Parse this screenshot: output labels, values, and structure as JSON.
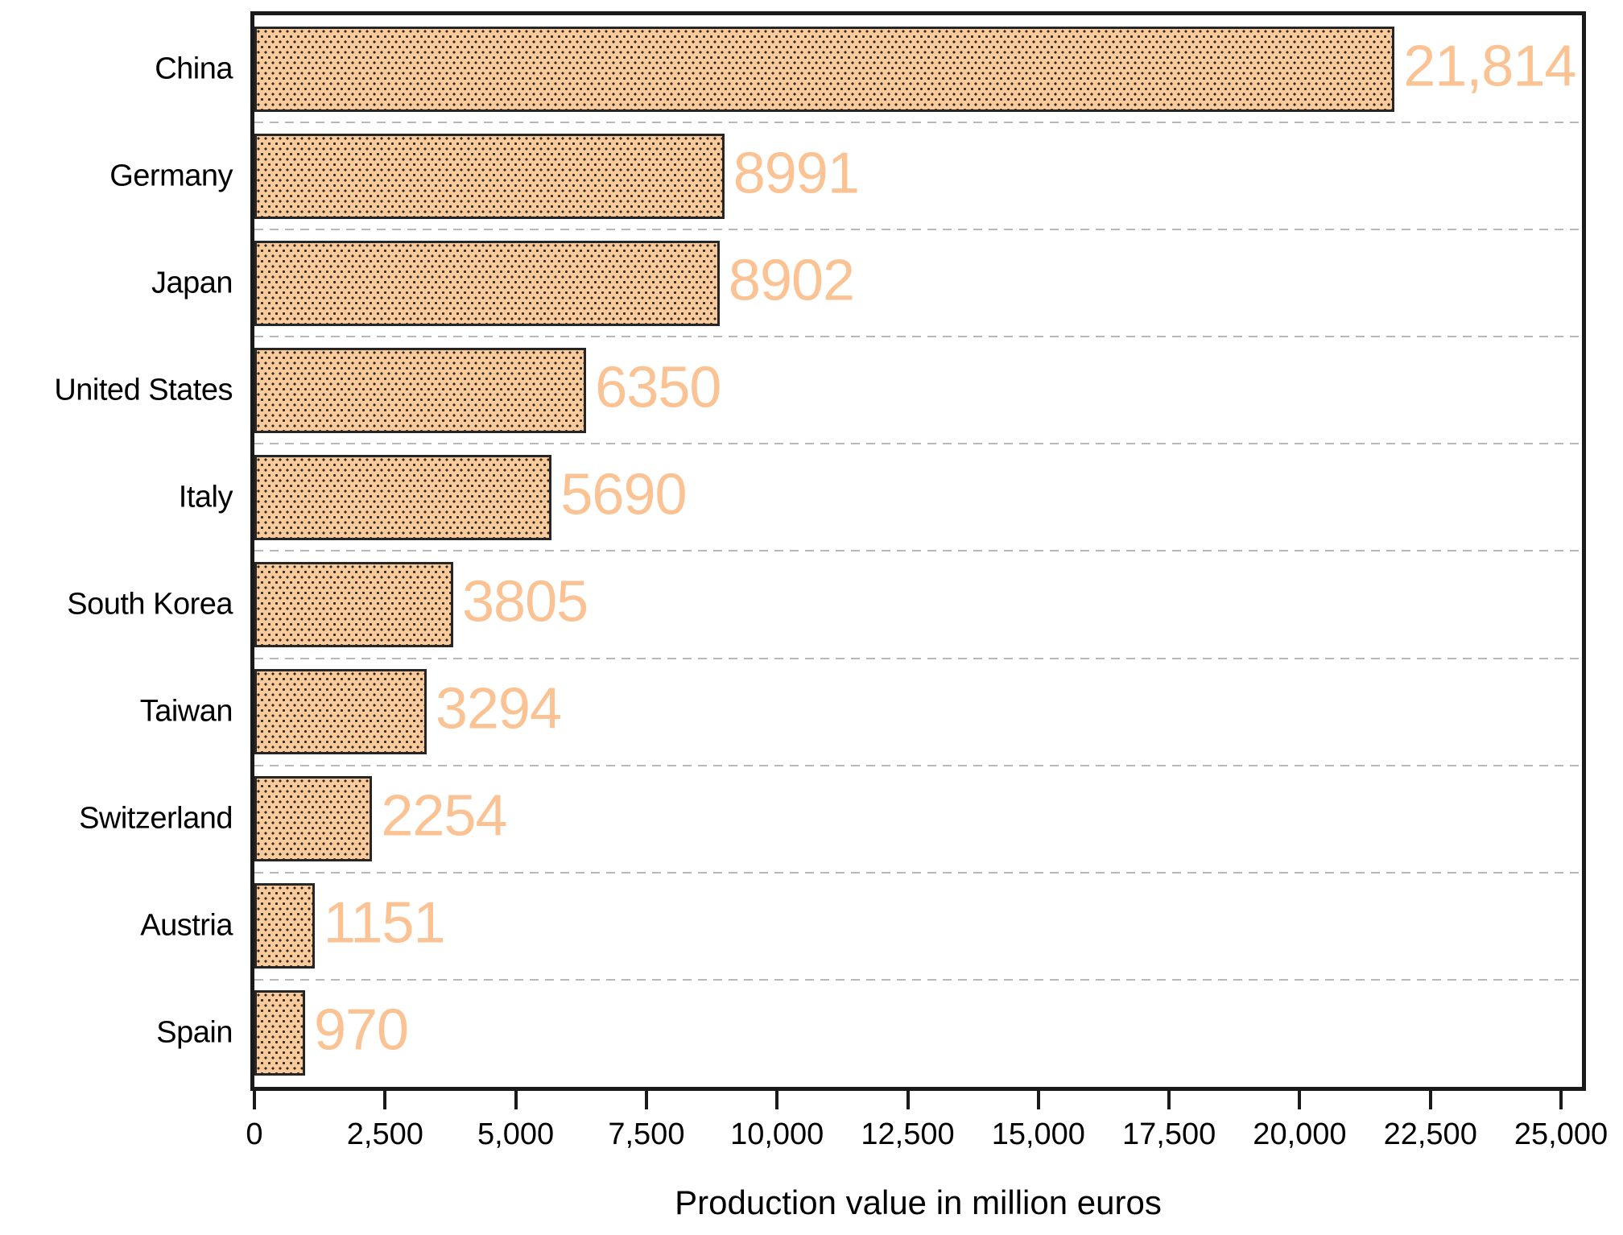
{
  "chart_data": {
    "type": "bar",
    "orientation": "horizontal",
    "categories": [
      "China",
      "Germany",
      "Japan",
      "United States",
      "Italy",
      "South Korea",
      "Taiwan",
      "Switzerland",
      "Austria",
      "Spain"
    ],
    "values": [
      21814,
      8991,
      8902,
      6350,
      5690,
      3805,
      3294,
      2254,
      1151,
      970
    ],
    "value_labels": [
      "21,814",
      "8991",
      "8902",
      "6350",
      "5690",
      "3805",
      "3294",
      "2254",
      "1151",
      "970"
    ],
    "xlabel": "Production value in million euros",
    "ylabel": "",
    "xlim": [
      0,
      25000
    ],
    "x_ticks": [
      0,
      2500,
      5000,
      7500,
      10000,
      12500,
      15000,
      17500,
      20000,
      22500,
      25000
    ],
    "x_tick_labels": [
      "0",
      "2,500",
      "5,000",
      "7,500",
      "10,000",
      "12,500",
      "15,000",
      "17,500",
      "20,000",
      "22,500",
      "25,000"
    ],
    "grid": "dashed horizontal lines between category bands",
    "legend": "none",
    "bar_pattern": "dark stipple dots on peach fill",
    "colors": {
      "bar_fill": "#F9CA9C",
      "bar_pattern_dot": "#33281C",
      "bar_border": "#262626",
      "value_label": "#FBC293",
      "axis": "#1A1A1A",
      "gridline": "#B8B8B8",
      "tick_label": "#000000"
    }
  }
}
